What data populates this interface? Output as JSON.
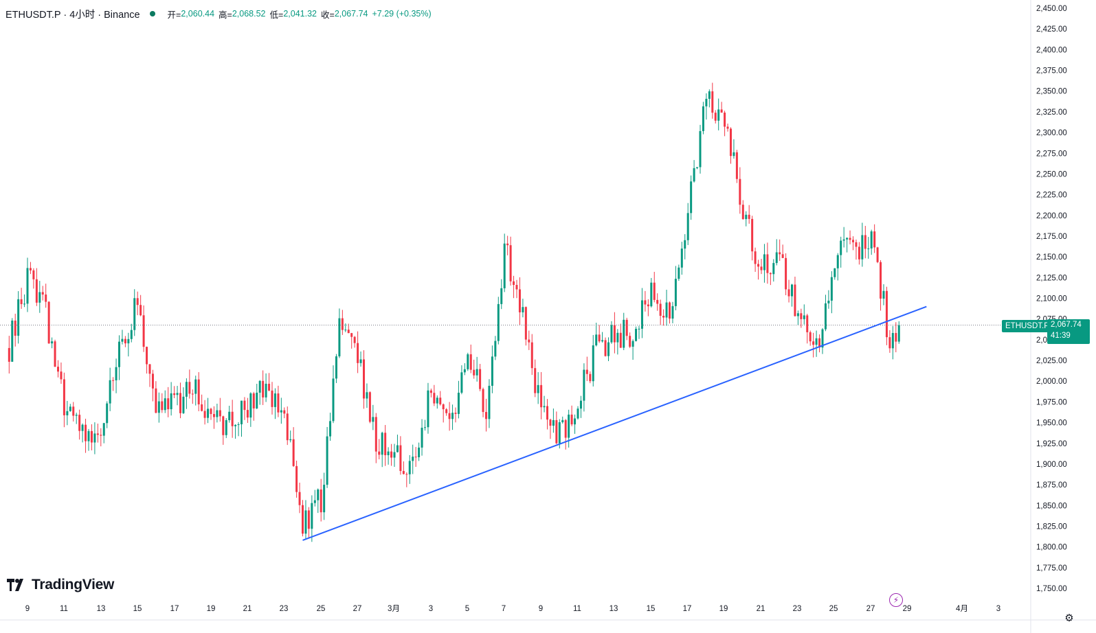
{
  "header": {
    "symbol_line": "ETHUSDT.P · 4小时 · Binance",
    "open_label": "开=",
    "open": "2,060.44",
    "high_label": "高=",
    "high": "2,068.52",
    "low_label": "低=",
    "low": "2,041.32",
    "close_label": "收=",
    "close": "2,067.74",
    "change": "+7.29 (+0.35%)"
  },
  "logo_text": "TradingView",
  "price_scale": {
    "ticker_tag": "ETHUSDT.P",
    "current_price": "2,067.74",
    "countdown": "41:39"
  },
  "colors": {
    "up": "#089981",
    "down": "#f23645",
    "trendline": "#2962ff",
    "accent": "#089981"
  },
  "icons": {
    "lightning": "lightning-icon",
    "settings": "gear-icon",
    "logo": "tradingview-logo-icon"
  },
  "chart_data": {
    "type": "candlestick",
    "symbol": "ETHUSDT.P",
    "timeframe": "4小时",
    "exchange": "Binance",
    "x_tick_labels": [
      "9",
      "11",
      "13",
      "15",
      "17",
      "19",
      "21",
      "23",
      "25",
      "27",
      "3月",
      "3",
      "5",
      "7",
      "9",
      "11",
      "13",
      "15",
      "17",
      "19",
      "21",
      "23",
      "25",
      "27",
      "29",
      "4月",
      "3"
    ],
    "y_tick_labels": [
      "2,450.00",
      "2,425.00",
      "2,400.00",
      "2,375.00",
      "2,350.00",
      "2,325.00",
      "2,300.00",
      "2,275.00",
      "2,250.00",
      "2,225.00",
      "2,200.00",
      "2,175.00",
      "2,150.00",
      "2,125.00",
      "2,100.00",
      "2,075.00",
      "2,050.00",
      "2,025.00",
      "2,000.00",
      "1,975.00",
      "1,950.00",
      "1,925.00",
      "1,900.00",
      "1,875.00",
      "1,850.00",
      "1,825.00",
      "1,800.00",
      "1,775.00",
      "1,750.00"
    ],
    "ylim": [
      1745,
      2458
    ],
    "last_price": 2067.74,
    "last_price_line": "dotted",
    "grid": false,
    "trendline": {
      "from": {
        "date": "Feb 24",
        "price": 1808
      },
      "to": {
        "date": "Mar 29",
        "price": 2090
      }
    },
    "candles_per_day": 6,
    "day_waypoints": [
      {
        "day": "Feb 8",
        "price": 2040
      },
      {
        "day": "Feb 9",
        "price": 2125
      },
      {
        "day": "Feb 10",
        "price": 2080
      },
      {
        "day": "Feb 11",
        "price": 1965
      },
      {
        "day": "Feb 12",
        "price": 1945
      },
      {
        "day": "Feb 13",
        "price": 1940
      },
      {
        "day": "Feb 14",
        "price": 2045
      },
      {
        "day": "Feb 15",
        "price": 2090
      },
      {
        "day": "Feb 16",
        "price": 1960
      },
      {
        "day": "Feb 17",
        "price": 1975
      },
      {
        "day": "Feb 18",
        "price": 1990
      },
      {
        "day": "Feb 19",
        "price": 1950
      },
      {
        "day": "Feb 20",
        "price": 1945
      },
      {
        "day": "Feb 21",
        "price": 1975
      },
      {
        "day": "Feb 22",
        "price": 1985
      },
      {
        "day": "Feb 23",
        "price": 1955
      },
      {
        "day": "Feb 24",
        "price": 1830
      },
      {
        "day": "Feb 25",
        "price": 1860
      },
      {
        "day": "Feb 26",
        "price": 2060
      },
      {
        "day": "Feb 27",
        "price": 2030
      },
      {
        "day": "Feb 28",
        "price": 1930
      },
      {
        "day": "Mar 1",
        "price": 1890
      },
      {
        "day": "Mar 2",
        "price": 2000
      },
      {
        "day": "Mar 3",
        "price": 1950
      },
      {
        "day": "Mar 4",
        "price": 2025
      },
      {
        "day": "Mar 5",
        "price": 1970
      },
      {
        "day": "Mar 6",
        "price": 2160
      },
      {
        "day": "Mar 7",
        "price": 2080
      },
      {
        "day": "Mar 8",
        "price": 1965
      },
      {
        "day": "Mar 9",
        "price": 1935
      },
      {
        "day": "Mar 10",
        "price": 1975
      },
      {
        "day": "Mar 11",
        "price": 2040
      },
      {
        "day": "Mar 12",
        "price": 2055
      },
      {
        "day": "Mar 13",
        "price": 2060
      },
      {
        "day": "Mar 14",
        "price": 2100
      },
      {
        "day": "Mar 15",
        "price": 2080
      },
      {
        "day": "Mar 16",
        "price": 2200
      },
      {
        "day": "Mar 17",
        "price": 2340
      },
      {
        "day": "Mar 18",
        "price": 2320
      },
      {
        "day": "Mar 19",
        "price": 2200
      },
      {
        "day": "Mar 20",
        "price": 2140
      },
      {
        "day": "Mar 21",
        "price": 2150
      },
      {
        "day": "Mar 22",
        "price": 2080
      },
      {
        "day": "Mar 23",
        "price": 2040
      },
      {
        "day": "Mar 24",
        "price": 2150
      },
      {
        "day": "Mar 25",
        "price": 2160
      },
      {
        "day": "Mar 26",
        "price": 2175
      },
      {
        "day": "Mar 27",
        "price": 2050
      },
      {
        "day": "Mar 27 12:00",
        "price": 2068
      }
    ]
  }
}
